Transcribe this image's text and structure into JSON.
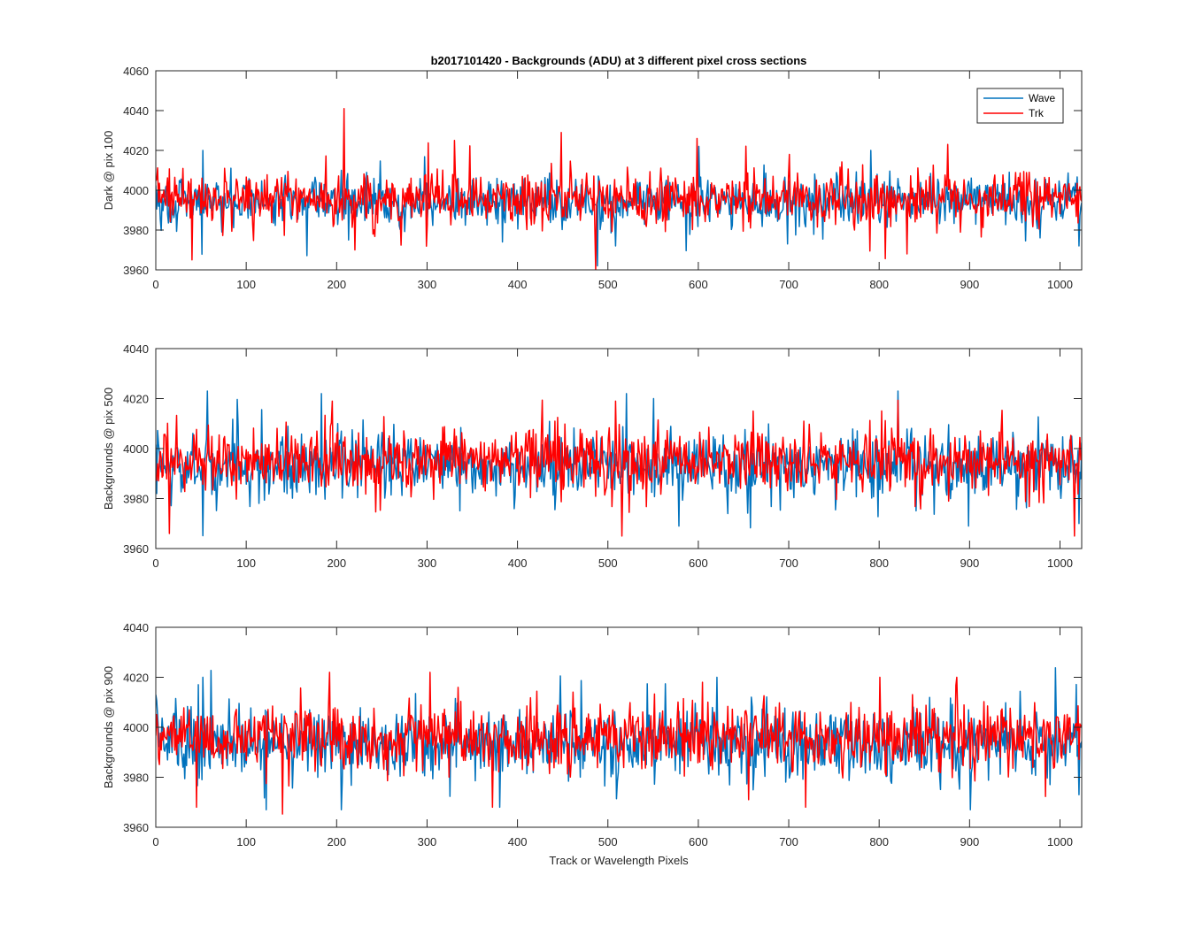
{
  "figure": {
    "title": "b2017101420 - Backgrounds (ADU) at 3 different pixel cross sections"
  },
  "chart_data": [
    {
      "type": "line",
      "title": "b2017101420 - Backgrounds (ADU) at 3 different pixel cross sections",
      "xlabel": "",
      "ylabel": "Dark @ pix 100",
      "xlim": [
        0,
        1024
      ],
      "ylim": [
        3960,
        4060
      ],
      "xticks": [
        0,
        100,
        200,
        300,
        400,
        500,
        600,
        700,
        800,
        900,
        1000
      ],
      "yticks": [
        3960,
        3980,
        4000,
        4020,
        4040,
        4060
      ],
      "legend": {
        "placement": "top-right",
        "entries": [
          "Wave",
          "Trk"
        ]
      },
      "grid": false,
      "series": [
        {
          "name": "Wave",
          "color": "#0072bd",
          "n_points": 1024,
          "mean": 3994,
          "spread": 7,
          "spikes": [
            [
              52,
              4020
            ],
            [
              205,
              4010
            ],
            [
              213,
              3975
            ],
            [
              488,
              3962
            ],
            [
              508,
              3972
            ],
            [
              600,
              4022
            ],
            [
              790,
              4020
            ],
            [
              830,
              3975
            ],
            [
              1020,
              3972
            ]
          ]
        },
        {
          "name": "Trk",
          "color": "#ff0000",
          "n_points": 1024,
          "mean": 3996,
          "spread": 7,
          "spikes": [
            [
              40,
              3965
            ],
            [
              208,
              4041
            ],
            [
              220,
              3970
            ],
            [
              330,
              4025
            ],
            [
              448,
              4029
            ],
            [
              486,
              3960
            ],
            [
              598,
              4026
            ],
            [
              830,
              3968
            ],
            [
              875,
              4023
            ],
            [
              700,
              4018
            ]
          ]
        }
      ]
    },
    {
      "type": "line",
      "title": "",
      "xlabel": "",
      "ylabel": "Backgrounds @ pix 500",
      "xlim": [
        0,
        1024
      ],
      "ylim": [
        3960,
        4040
      ],
      "xticks": [
        0,
        100,
        200,
        300,
        400,
        500,
        600,
        700,
        800,
        900,
        1000
      ],
      "yticks": [
        3960,
        3980,
        4000,
        4020,
        4040
      ],
      "grid": false,
      "series": [
        {
          "name": "Wave",
          "color": "#0072bd",
          "n_points": 1024,
          "mean": 3993,
          "spread": 7,
          "spikes": [
            [
              57,
              4023
            ],
            [
              183,
              4022
            ],
            [
              520,
              4022
            ],
            [
              550,
              4020
            ],
            [
              578,
              3969
            ],
            [
              820,
              4023
            ],
            [
              898,
              3969
            ],
            [
              1020,
              3970
            ]
          ]
        },
        {
          "name": "Trk",
          "color": "#ff0000",
          "n_points": 1024,
          "mean": 3995,
          "spread": 7,
          "spikes": [
            [
              15,
              3966
            ],
            [
              195,
              4019
            ],
            [
              508,
              4019
            ],
            [
              515,
              3965
            ],
            [
              660,
              4015
            ],
            [
              1015,
              3965
            ]
          ]
        }
      ]
    },
    {
      "type": "line",
      "title": "",
      "xlabel": "Track or Wavelength Pixels",
      "ylabel": "Backgrounds @ pix 900",
      "xlim": [
        0,
        1024
      ],
      "ylim": [
        3960,
        4040
      ],
      "xticks": [
        0,
        100,
        200,
        300,
        400,
        500,
        600,
        700,
        800,
        900,
        1000
      ],
      "yticks": [
        3960,
        3980,
        4000,
        4020,
        4040
      ],
      "grid": false,
      "series": [
        {
          "name": "Wave",
          "color": "#0072bd",
          "n_points": 1024,
          "mean": 3994,
          "spread": 8,
          "spikes": [
            [
              52,
              4020
            ],
            [
              122,
              3967
            ],
            [
              205,
              3967
            ],
            [
              380,
              3968
            ],
            [
              620,
              4020
            ],
            [
              900,
              3967
            ],
            [
              1020,
              3973
            ]
          ]
        },
        {
          "name": "Trk",
          "color": "#ff0000",
          "n_points": 1024,
          "mean": 3996,
          "spread": 7,
          "spikes": [
            [
              45,
              3968
            ],
            [
              192,
              4022
            ],
            [
              303,
              4022
            ],
            [
              372,
              3968
            ],
            [
              655,
              3971
            ],
            [
              718,
              3968
            ],
            [
              800,
              4020
            ],
            [
              885,
              4020
            ]
          ]
        }
      ]
    }
  ]
}
